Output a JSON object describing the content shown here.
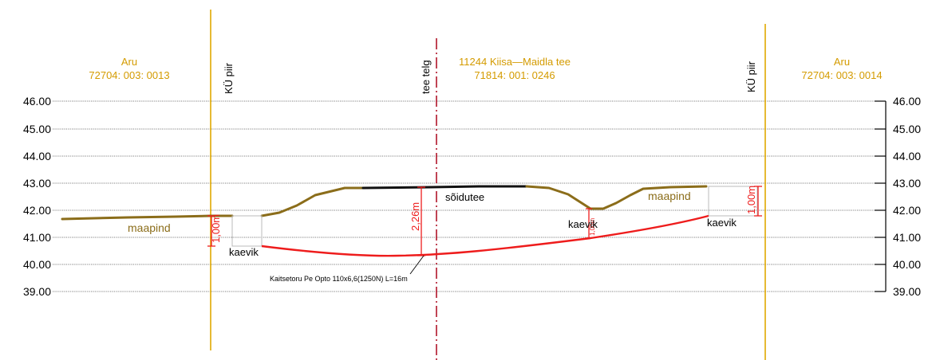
{
  "elevation_labels": [
    "46.00",
    "45.00",
    "44.00",
    "43.00",
    "42.00",
    "41.00",
    "40.00",
    "39.00"
  ],
  "parcels": {
    "left": {
      "name": "Aru",
      "id": "72704: 003: 0013"
    },
    "center": {
      "name": "11244  Kiisa—Maidla  tee",
      "id": "71814: 001: 0246"
    },
    "right": {
      "name": "Aru",
      "id": "72704: 003: 0014"
    }
  },
  "boundary_labels": {
    "left": "KÜ piir",
    "right": "KÜ piir"
  },
  "axis_label": "tee telg",
  "ground_labels": {
    "left": "maapind",
    "right": "maapind"
  },
  "road_label": "sõidutee",
  "trench_labels": {
    "left": "kaevik",
    "middle": "kaevik",
    "right": "kaevik"
  },
  "dimensions": {
    "left": "1,00m",
    "center": "2,26m",
    "middle": "1,00m",
    "right": "1,00m"
  },
  "pipe_label": "Kaitsetoru Pe Opto 110x6,6(1250N) L=16m",
  "colors": {
    "boundary": "#e0a800",
    "ground": "#8b6d1a",
    "road": "#111111",
    "pipe": "#ee1c1c",
    "axis": "#b0152a",
    "gridline": "#555555"
  }
}
